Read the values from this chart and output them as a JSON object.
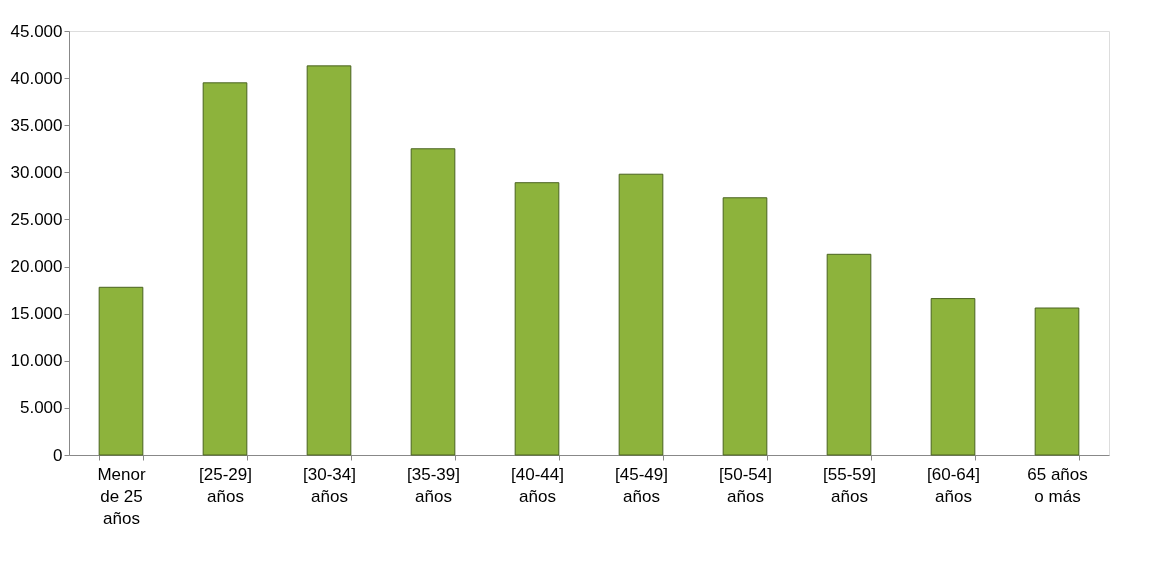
{
  "chart_data": {
    "type": "bar",
    "categories": [
      "Menor\nde 25\naños",
      "[25-29]\naños",
      "[30-34]\naños",
      "[35-39]\naños",
      "[40-44]\naños",
      "[45-49]\naños",
      "[50-54]\naños",
      "[55-59]\naños",
      "[60-64]\naños",
      "65 años\no más"
    ],
    "values": [
      17800,
      39500,
      41300,
      32500,
      28900,
      29800,
      27300,
      21300,
      16600,
      15600
    ],
    "color": "#8db33c",
    "ylim": [
      0,
      45000
    ],
    "yticks": [
      0,
      {
        "value": 5000,
        "label": "5.000"
      },
      {
        "value": 10000,
        "label": "10.000"
      },
      {
        "value": 15000,
        "label": "15.000"
      },
      {
        "value": 20000,
        "label": "20.000"
      },
      {
        "value": 25000,
        "label": "25.000"
      },
      {
        "value": 30000,
        "label": "30.000"
      },
      {
        "value": 35000,
        "label": "35.000"
      },
      {
        "value": 40000,
        "label": "40.000"
      },
      {
        "value": 45000,
        "label": "45.000"
      }
    ],
    "grid": false
  }
}
